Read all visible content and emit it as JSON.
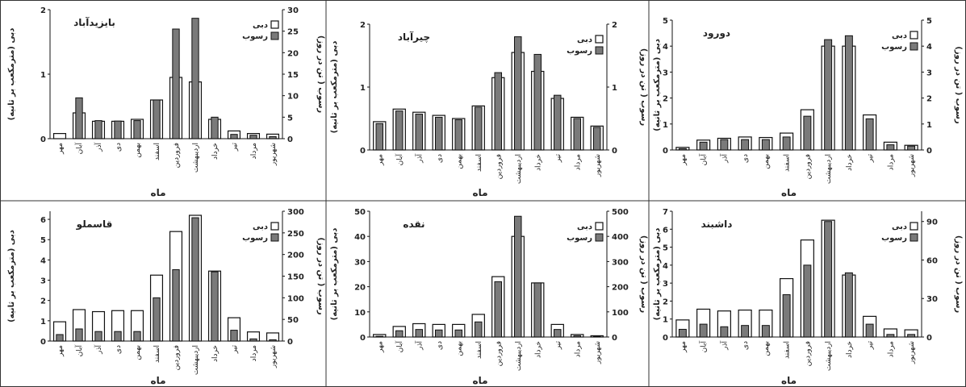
{
  "figure": {
    "x_axis_label": "ماه",
    "y_left_label": "دبی (مترمکعب بر ثانیه)",
    "y_right_label": "رسوب ( تن در روز)",
    "legend": [
      "دبی",
      "رسوب"
    ],
    "colors": {
      "discharge": "#ffffff",
      "sediment": "#7a7a7a",
      "stroke": "#111111"
    }
  },
  "chart_data": [
    {
      "type": "bar",
      "title": "بایزیدآباد",
      "categories": [
        "مهر",
        "آبان",
        "آذر",
        "دی",
        "بهمن",
        "اسفند",
        "فروردین",
        "اردیبهشت",
        "خرداد",
        "تیر",
        "مرداد",
        "شهریور"
      ],
      "series": [
        {
          "name": "دبی",
          "axis": "left",
          "values": [
            0.08,
            0.4,
            0.27,
            0.27,
            0.3,
            0.6,
            0.95,
            0.88,
            0.3,
            0.12,
            0.08,
            0.07
          ]
        },
        {
          "name": "رسوب",
          "axis": "right",
          "values": [
            0,
            9.5,
            4.2,
            4.1,
            4.2,
            9,
            25.5,
            28,
            5,
            1,
            0.8,
            0.5
          ]
        }
      ],
      "ylim_left": [
        0,
        2
      ],
      "yticks_left": [
        0,
        1,
        2
      ],
      "ylim_right": [
        0,
        30
      ],
      "yticks_right": [
        0,
        5,
        10,
        15,
        20,
        25,
        30
      ],
      "xlabel": "ماه",
      "ylabel": "دبی (مترمکعب بر ثانیه)",
      "ylabel_right": "رسوب ( تن در روز)",
      "legend": "top-right"
    },
    {
      "type": "bar",
      "title": "چیرآباد",
      "categories": [
        "مهر",
        "آبان",
        "آذر",
        "دی",
        "بهمن",
        "اسفند",
        "فروردین",
        "اردیبهشت",
        "خرداد",
        "تیر",
        "مرداد",
        "شهریور"
      ],
      "series": [
        {
          "name": "دبی",
          "axis": "left",
          "values": [
            0.45,
            0.65,
            0.6,
            0.55,
            0.5,
            0.7,
            1.15,
            1.55,
            1.25,
            0.82,
            0.52,
            0.38
          ]
        },
        {
          "name": "رسوب",
          "axis": "right",
          "values": [
            0.42,
            0.62,
            0.57,
            0.52,
            0.48,
            0.68,
            1.23,
            1.8,
            1.52,
            0.87,
            0.5,
            0.36
          ]
        }
      ],
      "ylim_left": [
        0,
        2
      ],
      "yticks_left": [
        0,
        1,
        2
      ],
      "ylim_right": [
        0,
        2
      ],
      "yticks_right": [
        0,
        1,
        2
      ],
      "xlabel": "ماه",
      "ylabel": "دبی (مترمکعب بر ثانیه)",
      "ylabel_right": "رسوب ( تن در روز)",
      "legend": "top-right"
    },
    {
      "type": "bar",
      "title": "دورود",
      "categories": [
        "مهر",
        "آبان",
        "آذر",
        "دی",
        "بهمن",
        "اسفند",
        "فروردین",
        "اردیبهشت",
        "خرداد",
        "تیر",
        "مرداد",
        "شهریور"
      ],
      "series": [
        {
          "name": "دبی",
          "axis": "left",
          "values": [
            0.1,
            0.38,
            0.45,
            0.5,
            0.48,
            0.65,
            1.55,
            4.0,
            4.0,
            1.35,
            0.3,
            0.18
          ]
        },
        {
          "name": "رسوب",
          "axis": "right",
          "values": [
            0.05,
            0.3,
            0.4,
            0.4,
            0.4,
            0.5,
            1.3,
            4.25,
            4.4,
            1.2,
            0.2,
            0.15
          ]
        }
      ],
      "ylim_left": [
        0,
        5
      ],
      "yticks_left": [
        0,
        1,
        2,
        3,
        4,
        5
      ],
      "ylim_right": [
        0,
        5
      ],
      "yticks_right": [
        0,
        1,
        2,
        3,
        4,
        5
      ],
      "xlabel": "ماه",
      "ylabel": "دبی (مترمکعب بر ثانیه)",
      "ylabel_right": "رسوب ( تن در روز)",
      "legend": "top-right"
    },
    {
      "type": "bar",
      "title": "قاسملو",
      "categories": [
        "مهر",
        "آبان",
        "آذر",
        "دی",
        "بهمن",
        "اسفند",
        "فروردین",
        "اردیبهشت",
        "خرداد",
        "تیر",
        "مرداد",
        "شهریور"
      ],
      "series": [
        {
          "name": "دبی",
          "axis": "left",
          "values": [
            0.95,
            1.55,
            1.45,
            1.5,
            1.5,
            3.25,
            5.4,
            6.2,
            3.45,
            1.15,
            0.45,
            0.4
          ]
        },
        {
          "name": "رسوب",
          "axis": "right",
          "values": [
            15,
            28,
            22,
            22,
            22,
            100,
            165,
            285,
            160,
            25,
            5,
            3
          ]
        }
      ],
      "ylim_left": [
        0,
        6.4
      ],
      "yticks_left": [
        0,
        1,
        2,
        3,
        4,
        5,
        6
      ],
      "ylim_right": [
        0,
        300
      ],
      "yticks_right": [
        0,
        50,
        100,
        150,
        200,
        250,
        300
      ],
      "xlabel": "ماه",
      "ylabel": "دبی (مترمکعب بر ثانیه)",
      "ylabel_right": "رسوب ( تن در روز)",
      "legend": "top-right"
    },
    {
      "type": "bar",
      "title": "نقده",
      "categories": [
        "مهر",
        "آبان",
        "آذر",
        "دی",
        "بهمن",
        "اسفند",
        "فروردین",
        "اردیبهشت",
        "خرداد",
        "تیر",
        "مرداد",
        "شهریور"
      ],
      "series": [
        {
          "name": "دبی",
          "axis": "left",
          "values": [
            1.0,
            4.2,
            5.3,
            5.0,
            5.0,
            9.0,
            24,
            40,
            21.5,
            5.0,
            1.0,
            0.5
          ]
        },
        {
          "name": "رسوب",
          "axis": "right",
          "values": [
            3,
            25,
            30,
            28,
            28,
            60,
            220,
            480,
            215,
            30,
            5,
            2
          ]
        }
      ],
      "ylim_left": [
        0,
        50
      ],
      "yticks_left": [
        0,
        10,
        20,
        30,
        40,
        50
      ],
      "ylim_right": [
        0,
        500
      ],
      "yticks_right": [
        0,
        100,
        200,
        300,
        400,
        500
      ],
      "xlabel": "ماه",
      "ylabel": "دبی (مترمکعب بر ثانیه)",
      "ylabel_right": "رسوب ( تن در روز)",
      "legend": "top-right"
    },
    {
      "type": "bar",
      "title": "داشبند",
      "categories": [
        "مهر",
        "آبان",
        "آذر",
        "دی",
        "بهمن",
        "اسفند",
        "فروردین",
        "اردیبهشت",
        "خرداد",
        "تیر",
        "مرداد",
        "شهریور"
      ],
      "series": [
        {
          "name": "دبی",
          "axis": "left",
          "values": [
            0.95,
            1.55,
            1.45,
            1.5,
            1.5,
            3.25,
            5.4,
            6.5,
            3.45,
            1.15,
            0.45,
            0.4
          ]
        },
        {
          "name": "رسوب",
          "axis": "right",
          "values": [
            6,
            10,
            8,
            9,
            9,
            33,
            56,
            90,
            50,
            10,
            2,
            2
          ]
        }
      ],
      "ylim_left": [
        0,
        7
      ],
      "yticks_left": [
        0,
        1,
        2,
        3,
        4,
        5,
        6,
        7
      ],
      "ylim_right": [
        0,
        98
      ],
      "yticks_right": [
        0,
        30,
        60,
        90
      ],
      "xlabel": "ماه",
      "ylabel": "دبی (مترمکعب بر ثانیه)",
      "ylabel_right": "رسوب ( تن در روز)",
      "legend": "top-right"
    }
  ]
}
